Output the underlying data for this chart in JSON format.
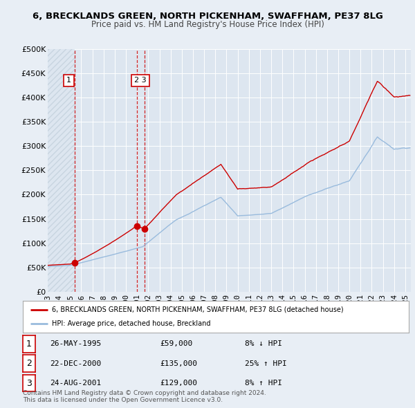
{
  "title": "6, BRECKLANDS GREEN, NORTH PICKENHAM, SWAFFHAM, PE37 8LG",
  "subtitle": "Price paid vs. HM Land Registry's House Price Index (HPI)",
  "hpi_label": "HPI: Average price, detached house, Breckland",
  "property_label": "6, BRECKLANDS GREEN, NORTH PICKENHAM, SWAFFHAM, PE37 8LG (detached house)",
  "property_color": "#cc0000",
  "hpi_color": "#99bbdd",
  "background_color": "#e8eef5",
  "plot_bg_color": "#dde6f0",
  "hatch_color": "#c8d4e0",
  "grid_color": "#ffffff",
  "transactions": [
    {
      "num": 1,
      "date": "26-MAY-1995",
      "year": 1995.4,
      "price": 59000,
      "hpi_diff": "8% ↓ HPI"
    },
    {
      "num": 2,
      "date": "22-DEC-2000",
      "year": 2000.97,
      "price": 135000,
      "hpi_diff": "25% ↑ HPI"
    },
    {
      "num": 3,
      "date": "24-AUG-2001",
      "year": 2001.64,
      "price": 129000,
      "hpi_diff": "8% ↑ HPI"
    }
  ],
  "footnote": "Contains HM Land Registry data © Crown copyright and database right 2024.\nThis data is licensed under the Open Government Licence v3.0.",
  "ylim": [
    0,
    500000
  ],
  "xlim": [
    1993.0,
    2025.5
  ],
  "yticks": [
    0,
    50000,
    100000,
    150000,
    200000,
    250000,
    300000,
    350000,
    400000,
    450000,
    500000
  ],
  "ytick_labels": [
    "£0",
    "£50K",
    "£100K",
    "£150K",
    "£200K",
    "£250K",
    "£300K",
    "£350K",
    "£400K",
    "£450K",
    "£500K"
  ]
}
